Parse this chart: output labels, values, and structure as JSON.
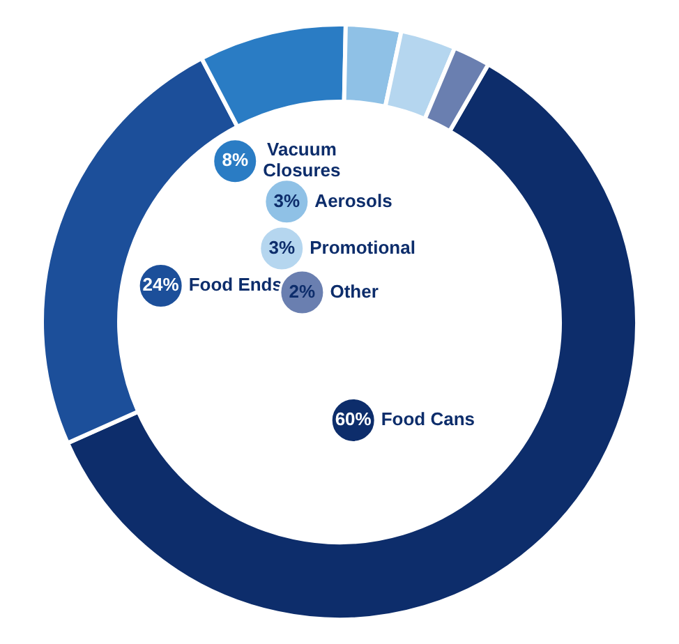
{
  "chart_data": {
    "type": "donut",
    "categories": [
      "Food Cans",
      "Food Ends",
      "Vacuum Closures",
      "Aerosols",
      "Promotional",
      "Other"
    ],
    "values": [
      60,
      24,
      8,
      3,
      3,
      2
    ],
    "colors": [
      "#0d2d6b",
      "#1c4f9a",
      "#2a7cc4",
      "#8fc1e6",
      "#b5d6ef",
      "#6a7fb0"
    ],
    "value_labels": [
      "60%",
      "24%",
      "8%",
      "3%",
      "3%",
      "2%"
    ],
    "legend": false
  }
}
